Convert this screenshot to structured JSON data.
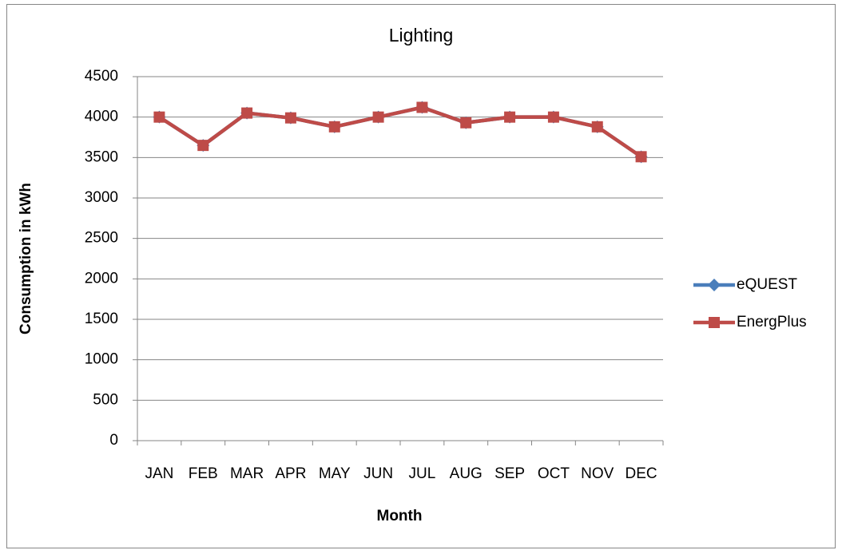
{
  "chart_data": {
    "type": "line",
    "title": "Lighting",
    "x_label": "Month",
    "y_label": "Consumption in kWh",
    "categories": [
      "JAN",
      "FEB",
      "MAR",
      "APR",
      "MAY",
      "JUN",
      "JUL",
      "AUG",
      "SEP",
      "OCT",
      "NOV",
      "DEC"
    ],
    "series": [
      {
        "name": "eQUEST",
        "color": "#4a7ebb",
        "marker": "diamond",
        "values": [
          4000,
          3650,
          4050,
          3990,
          3880,
          4000,
          4120,
          3930,
          4000,
          4000,
          3880,
          3510
        ]
      },
      {
        "name": "EnergPlus",
        "color": "#be4b48",
        "marker": "square",
        "values": [
          4000,
          3650,
          4050,
          3990,
          3880,
          4000,
          4120,
          3930,
          4000,
          4000,
          3880,
          3510
        ]
      }
    ],
    "ylim": [
      0,
      4500
    ],
    "yticks": [
      0,
      500,
      1000,
      1500,
      2000,
      2500,
      3000,
      3500,
      4000,
      4500
    ],
    "grid": true,
    "legend": "right"
  }
}
